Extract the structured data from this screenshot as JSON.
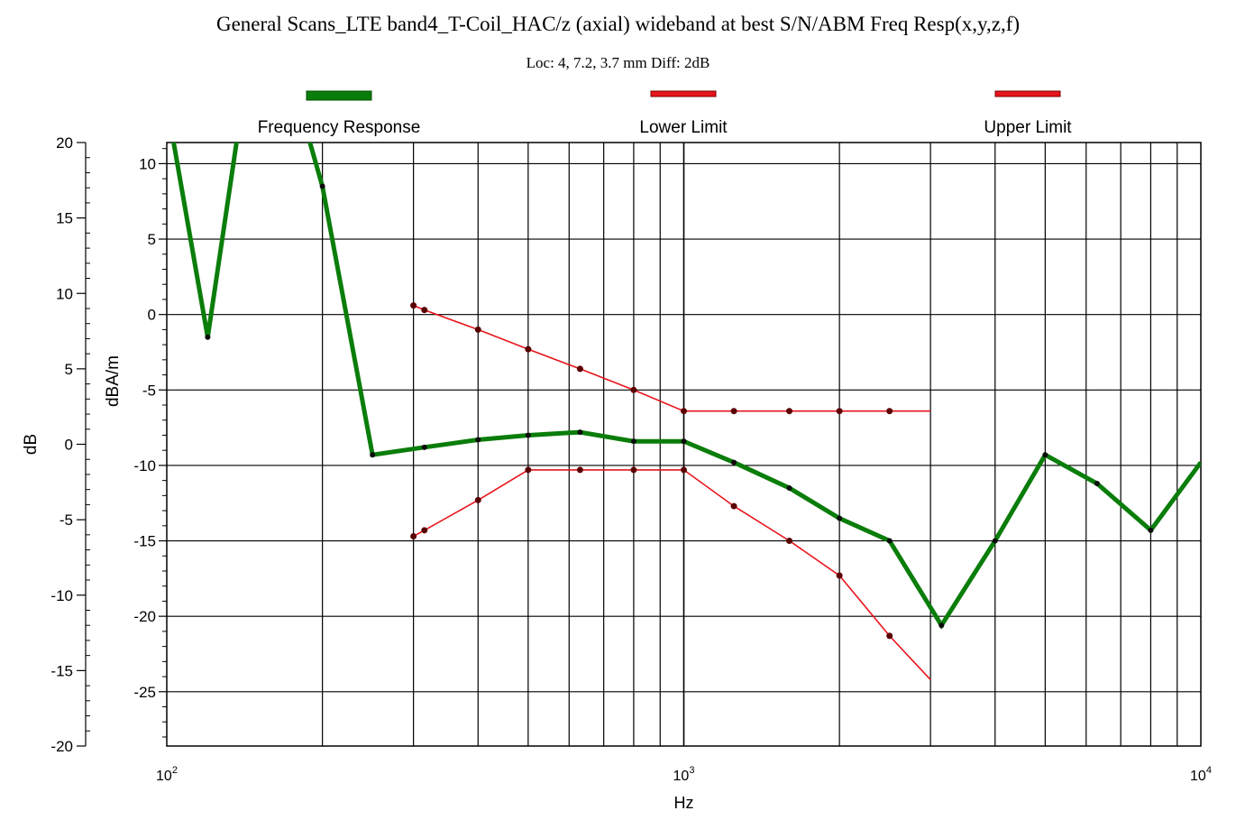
{
  "title": "General Scans_LTE band4_T-Coil_HAC/z (axial) wideband at best S/N/ABM Freq Resp(x,y,z,f)",
  "subtitle": "Loc: 4, 7.2, 3.7 mm Diff: 2dB",
  "colors": {
    "frequency_response": "#0a7d0a",
    "limits": "#e8141c",
    "grid": "#000000",
    "background": "#ffffff"
  },
  "chart_data": {
    "type": "line",
    "xlabel": "Hz",
    "ylabel_left": "dB",
    "ylabel_right": "dBA/m",
    "x_scale": "log",
    "xlim": [
      100,
      10000
    ],
    "ylim_left": [
      -20,
      20
    ],
    "ylim_right": [
      -28.6,
      11.4
    ],
    "x_ticks": [
      {
        "value": 100,
        "base": "10",
        "exp": "2"
      },
      {
        "value": 1000,
        "base": "10",
        "exp": "3"
      },
      {
        "value": 10000,
        "base": "10",
        "exp": "4"
      }
    ],
    "y_ticks_left": [
      "20",
      "15",
      "10",
      "5",
      "0",
      "-5",
      "-10",
      "-15",
      "-20"
    ],
    "y_ticks_right": [
      "10",
      "5",
      "0",
      "-5",
      "-10",
      "-15",
      "-20",
      "-25"
    ],
    "grid": true,
    "legend_position": "top",
    "series": [
      {
        "name": "Frequency Response",
        "points": [
          [
            100,
            14
          ],
          [
            120,
            -1.5
          ],
          [
            140,
            14
          ],
          [
            180,
            14
          ],
          [
            200,
            8.5
          ],
          [
            250,
            -9.3
          ],
          [
            315,
            -8.8
          ],
          [
            400,
            -8.3
          ],
          [
            500,
            -8
          ],
          [
            630,
            -7.8
          ],
          [
            800,
            -8.4
          ],
          [
            1000,
            -8.4
          ],
          [
            1250,
            -9.8
          ],
          [
            1600,
            -11.5
          ],
          [
            2000,
            -13.5
          ],
          [
            2500,
            -15
          ],
          [
            3150,
            -20.6
          ],
          [
            4000,
            -15
          ],
          [
            5000,
            -9.3
          ],
          [
            6300,
            -11.2
          ],
          [
            8000,
            -14.3
          ],
          [
            10000,
            -9.8
          ]
        ]
      },
      {
        "name": "Lower Limit",
        "points": [
          [
            300,
            -14.7
          ],
          [
            315,
            -14.3
          ],
          [
            400,
            -12.3
          ],
          [
            500,
            -10.3
          ],
          [
            630,
            -10.3
          ],
          [
            800,
            -10.3
          ],
          [
            1000,
            -10.3
          ],
          [
            1250,
            -12.7
          ],
          [
            1600,
            -15
          ],
          [
            2000,
            -17.3
          ],
          [
            2500,
            -21.3
          ],
          [
            3000,
            -24.2
          ]
        ]
      },
      {
        "name": "Upper Limit",
        "points": [
          [
            300,
            0.6
          ],
          [
            315,
            0.3
          ],
          [
            400,
            -1
          ],
          [
            500,
            -2.3
          ],
          [
            630,
            -3.6
          ],
          [
            800,
            -5
          ],
          [
            1000,
            -6.4
          ],
          [
            1250,
            -6.4
          ],
          [
            1600,
            -6.4
          ],
          [
            2000,
            -6.4
          ],
          [
            2500,
            -6.4
          ],
          [
            3000,
            -6.4
          ]
        ]
      }
    ]
  }
}
